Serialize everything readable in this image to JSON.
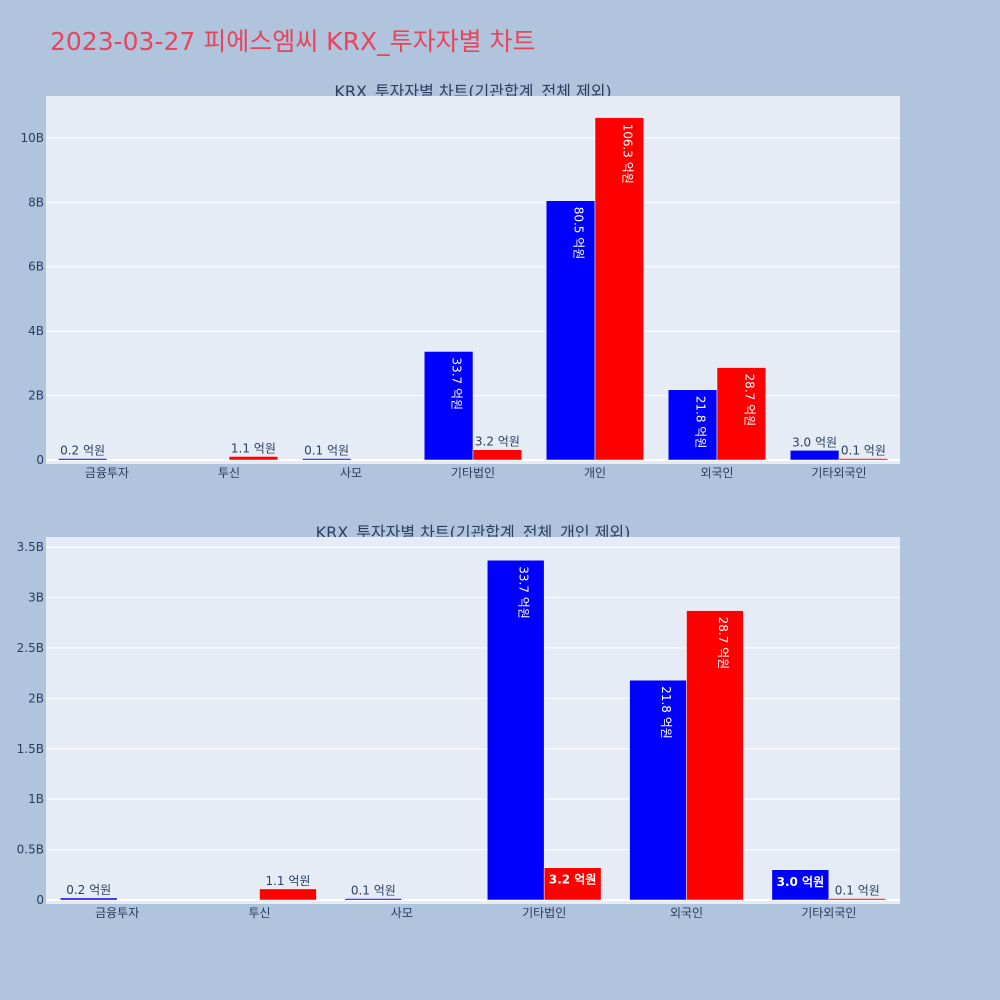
{
  "page": {
    "title": "2023-03-27 피에스엠씨 KRX_투자자별 차트"
  },
  "colors": {
    "buy": "#0000ff",
    "sell": "#ff0000",
    "plot_bg": "#e5ecf6",
    "paper_bg": "#b0c4de",
    "title": "#e8455a"
  },
  "chart_data": [
    {
      "type": "bar",
      "title": "KRX_투자자별 차트(기관합계_전체 제외)",
      "categories": [
        "금융투자",
        "투신",
        "사모",
        "기타법인",
        "개인",
        "외국인",
        "기타외국인"
      ],
      "series": [
        {
          "values": [
            20000000,
            0,
            10000000,
            3370000000,
            8050000000,
            2180000000,
            300000000
          ],
          "labels": [
            "0.2 억원",
            "",
            "0.1 억원",
            "33.7 억원",
            "80.5 억원",
            "21.8 억원",
            "3.0 억원"
          ]
        },
        {
          "values": [
            0,
            110000000,
            0,
            320000000,
            10630000000,
            2870000000,
            10000000
          ],
          "labels": [
            "",
            "1.1 억원",
            "",
            "3.2 억원",
            "106.3 억원",
            "28.7 억원",
            "0.1 억원"
          ]
        }
      ],
      "ylim": [
        0,
        11300000000
      ],
      "yticks": [
        0,
        2000000000,
        4000000000,
        6000000000,
        8000000000,
        10000000000
      ],
      "ytick_labels": [
        "0",
        "2B",
        "4B",
        "6B",
        "8B",
        "10B"
      ]
    },
    {
      "type": "bar",
      "title": "KRX_투자자별 차트(기관합계_전체_개인 제외)",
      "categories": [
        "금융투자",
        "투신",
        "사모",
        "기타법인",
        "외국인",
        "기타외국인"
      ],
      "series": [
        {
          "values": [
            20000000,
            0,
            10000000,
            3370000000,
            2180000000,
            300000000
          ],
          "labels": [
            "0.2 억원",
            "",
            "0.1 억원",
            "33.7 억원",
            "21.8 억원",
            "3.0 억원"
          ]
        },
        {
          "values": [
            0,
            110000000,
            0,
            320000000,
            2870000000,
            10000000
          ],
          "labels": [
            "",
            "1.1 억원",
            "",
            "3.2 억원",
            "28.7 억원",
            "0.1 억원"
          ]
        }
      ],
      "ylim": [
        0,
        3600000000
      ],
      "yticks": [
        0,
        500000000,
        1000000000,
        1500000000,
        2000000000,
        2500000000,
        3000000000,
        3500000000
      ],
      "ytick_labels": [
        "0",
        "0.5B",
        "1B",
        "1.5B",
        "2B",
        "2.5B",
        "3B",
        "3.5B"
      ]
    }
  ]
}
